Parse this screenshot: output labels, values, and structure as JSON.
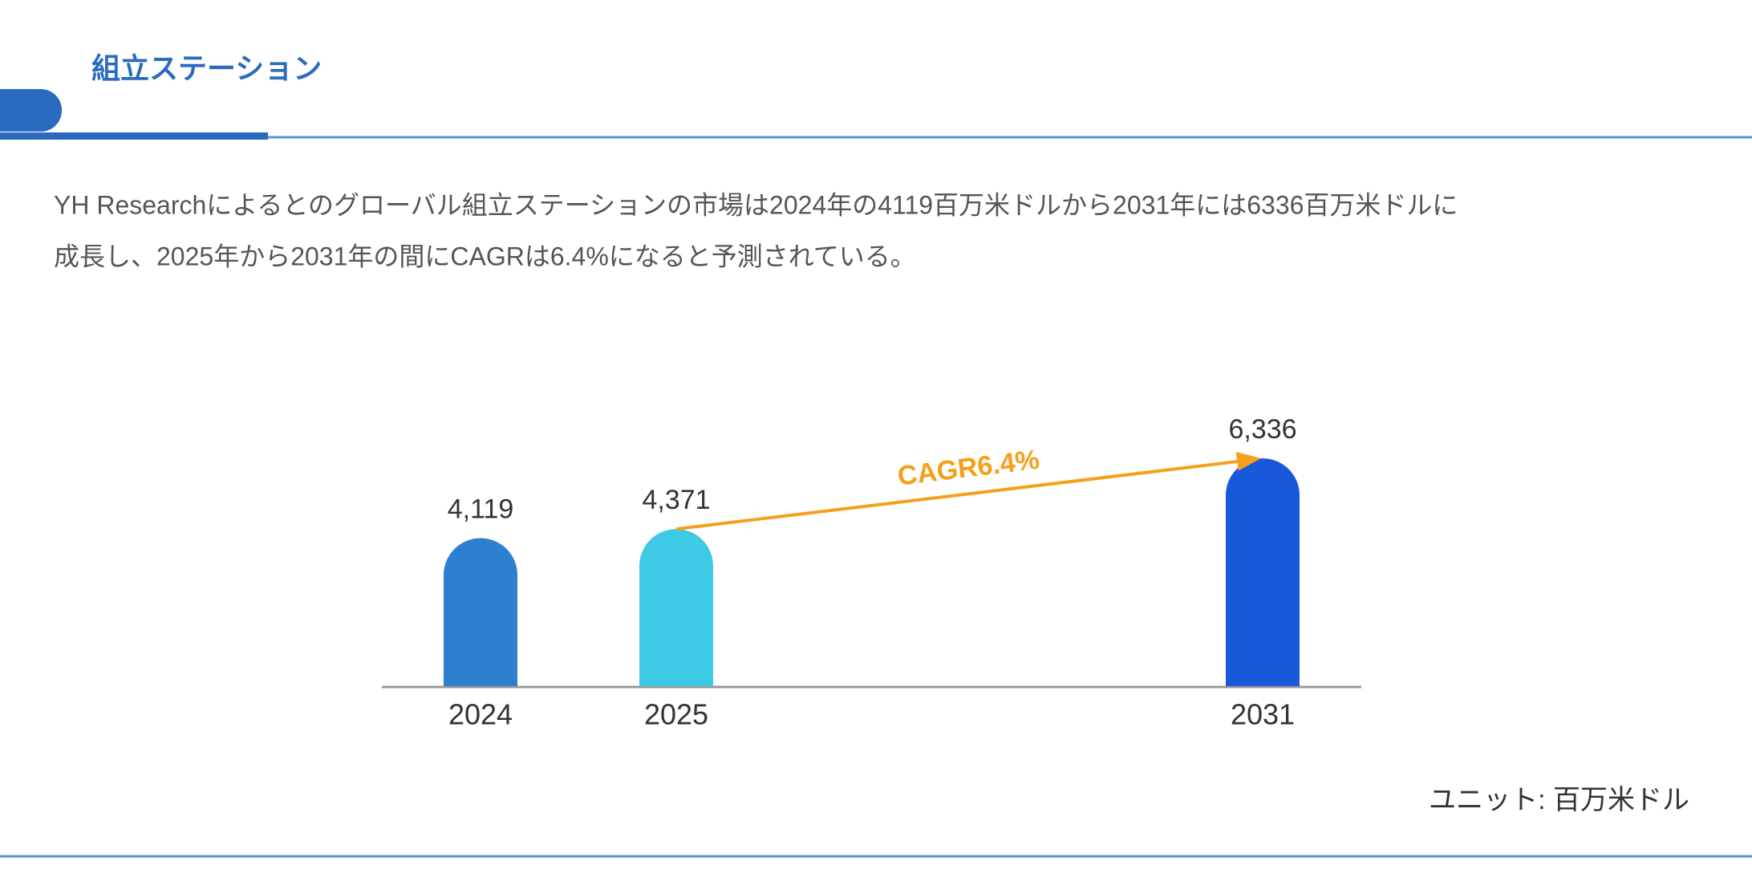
{
  "header": {
    "title": "組立ステーション"
  },
  "description": [
    "YH Researchによるとのグローバル組立ステーションの市場は2024年の4119百万米ドルから2031年には6336百万米ドルに",
    "成長し、2025年から2031年の間にCAGRは6.4%になると予測されている。"
  ],
  "chart_data": {
    "type": "bar",
    "categories": [
      "2024",
      "2025",
      "2031"
    ],
    "values": [
      4119,
      4371,
      6336
    ],
    "value_labels": [
      "4,119",
      "4,371",
      "6,336"
    ],
    "colors": [
      "#2f7fd0",
      "#3ec9e4",
      "#1759d9"
    ],
    "annotation": "CAGR6.4%",
    "annotation_color": "#f5a01a",
    "unit_label": "ユニット: 百万米ドル"
  }
}
